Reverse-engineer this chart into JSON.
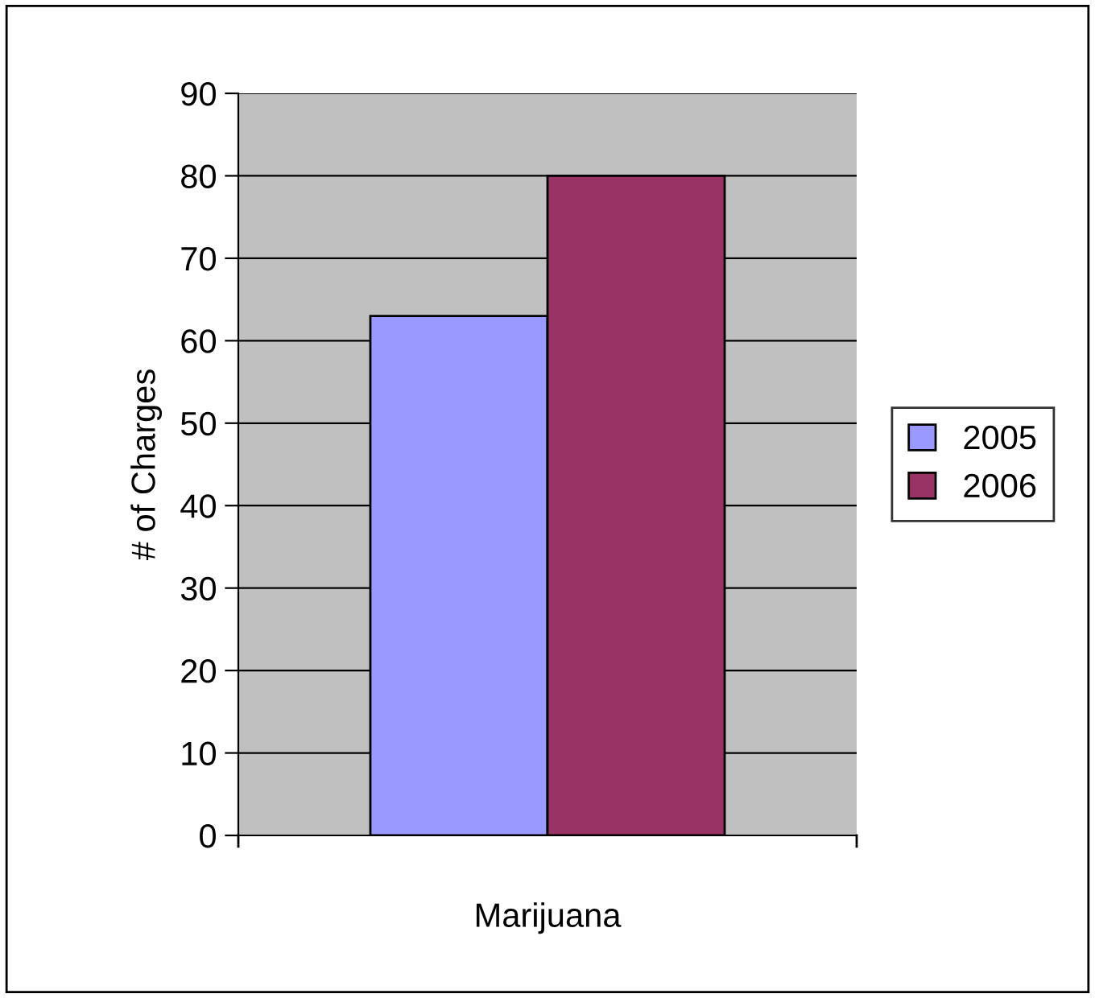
{
  "chart_data": {
    "type": "bar",
    "ylabel": "# of Charges",
    "categories": [
      "Marijuana"
    ],
    "series": [
      {
        "name": "2005",
        "color": "#9999ff",
        "values": [
          63
        ]
      },
      {
        "name": "2006",
        "color": "#993366",
        "values": [
          80
        ]
      }
    ],
    "ylim": [
      0,
      90
    ],
    "yticks": [
      0,
      10,
      20,
      30,
      40,
      50,
      60,
      70,
      80,
      90
    ],
    "grid": "y",
    "legend": "right"
  }
}
